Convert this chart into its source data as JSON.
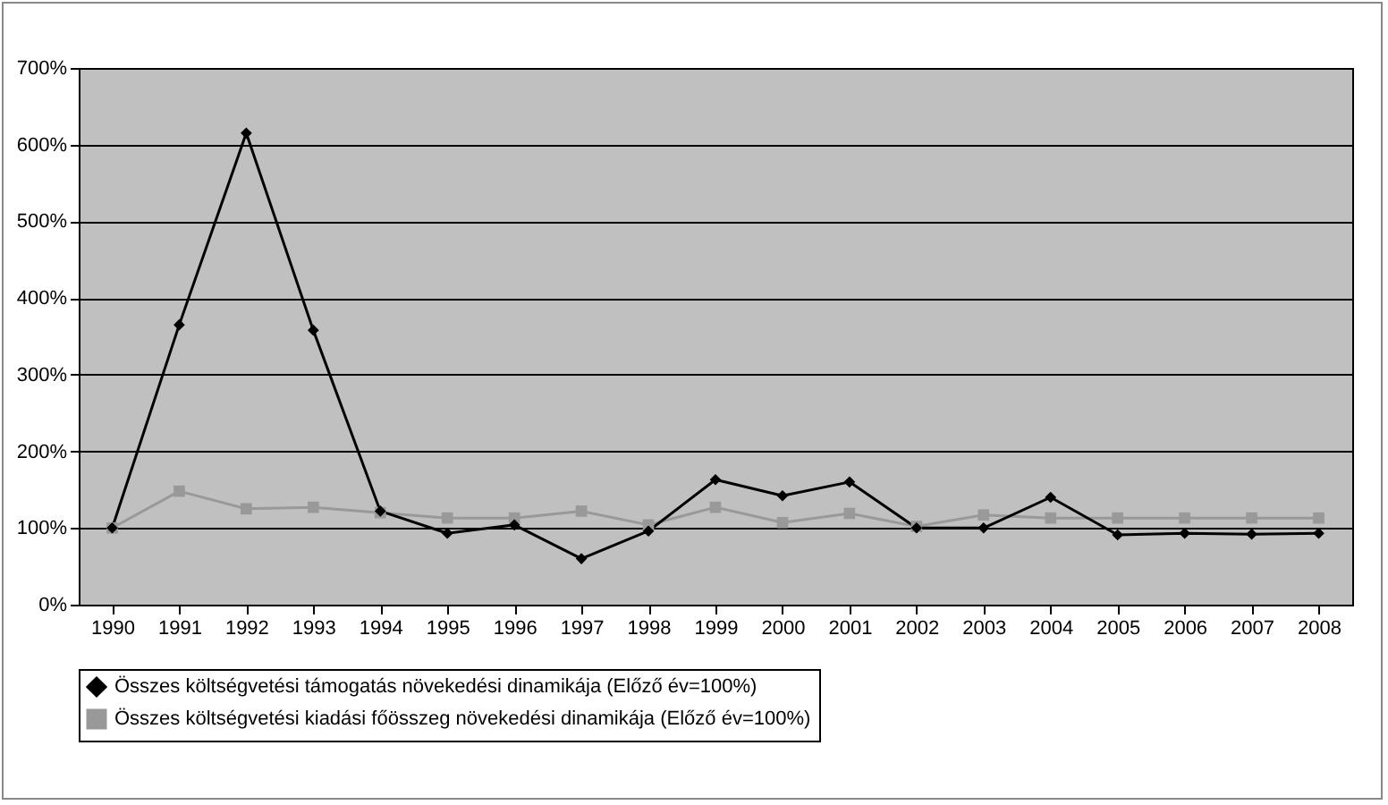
{
  "chart_data": {
    "type": "line",
    "categories": [
      "1990",
      "1991",
      "1992",
      "1993",
      "1994",
      "1995",
      "1996",
      "1997",
      "1998",
      "1999",
      "2000",
      "2001",
      "2002",
      "2003",
      "2004",
      "2005",
      "2006",
      "2007",
      "2008"
    ],
    "series": [
      {
        "name": "Összes költségvetési támogatás növekedési dinamikája (Előző év=100%)",
        "color": "#000000",
        "marker": "diamond",
        "values": [
          100,
          365,
          615,
          358,
          122,
          93,
          104,
          60,
          96,
          163,
          142,
          160,
          100,
          100,
          140,
          91,
          93,
          92,
          93
        ]
      },
      {
        "name": "Összes költségvetési kiadási főösszeg növekedési dinamikája (Előző év=100%)",
        "color": "#999999",
        "marker": "square",
        "values": [
          100,
          148,
          125,
          127,
          120,
          113,
          113,
          122,
          104,
          127,
          107,
          119,
          102,
          117,
          113,
          113,
          113,
          113,
          113
        ]
      }
    ],
    "ylim": [
      0,
      700
    ],
    "yticks": [
      {
        "value": 0,
        "label": "0%"
      },
      {
        "value": 100,
        "label": "100%"
      },
      {
        "value": 200,
        "label": "200%"
      },
      {
        "value": 300,
        "label": "300%"
      },
      {
        "value": 400,
        "label": "400%"
      },
      {
        "value": 500,
        "label": "500%"
      },
      {
        "value": 600,
        "label": "600%"
      },
      {
        "value": 700,
        "label": "700%"
      }
    ],
    "grid": "y",
    "legend": "bottom",
    "line_style": "solid"
  }
}
